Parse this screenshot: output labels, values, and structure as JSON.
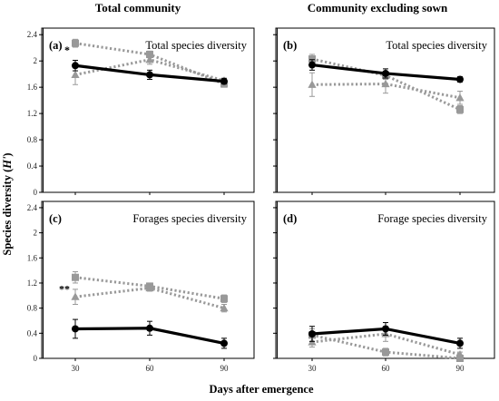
{
  "figure": {
    "col_left_title": "Total community",
    "col_right_title": "Community excluding sown",
    "ylabel_main": "Species diversity (",
    "ylabel_italic": "H'",
    "ylabel_end": ")",
    "xlabel": "Days after emergence"
  },
  "colors": {
    "solid": "#000000",
    "dotted": "#999999"
  },
  "chart_data": [
    {
      "type": "line",
      "tag": "(a)",
      "title": "Total species diversity",
      "x": [
        30,
        60,
        90
      ],
      "xticks": [
        "30",
        "60",
        "90"
      ],
      "ylim": [
        0,
        2.5
      ],
      "yticks": [
        "0",
        "0.4",
        "0.8",
        "1.2",
        "1.6",
        "2",
        "2.4"
      ],
      "annotation": "*",
      "series": [
        {
          "style": "solid-circle",
          "values": [
            1.93,
            1.79,
            1.69
          ],
          "errors": [
            0.08,
            0.07,
            0.04
          ]
        },
        {
          "style": "dotted-square",
          "values": [
            2.27,
            2.1,
            1.65
          ],
          "errors": [
            0.06,
            0.05,
            0.05
          ]
        },
        {
          "style": "dotted-triangle",
          "values": [
            1.79,
            2.02,
            1.7
          ],
          "errors": [
            0.15,
            0.07,
            0.04
          ]
        }
      ]
    },
    {
      "type": "line",
      "tag": "(b)",
      "title": "Total species diversity",
      "x": [
        30,
        60,
        90
      ],
      "xticks": [
        "30",
        "60",
        "90"
      ],
      "ylim": [
        0,
        2.5
      ],
      "yticks": [
        "0",
        "0.4",
        "0.8",
        "1.2",
        "1.6",
        "2",
        "2.4"
      ],
      "annotation": "",
      "series": [
        {
          "style": "solid-circle",
          "values": [
            1.94,
            1.81,
            1.72
          ],
          "errors": [
            0.08,
            0.07,
            0.04
          ]
        },
        {
          "style": "dotted-square",
          "values": [
            2.03,
            1.78,
            1.26
          ],
          "errors": [
            0.07,
            0.06,
            0.06
          ]
        },
        {
          "style": "dotted-triangle",
          "values": [
            1.64,
            1.65,
            1.44
          ],
          "errors": [
            0.18,
            0.14,
            0.1
          ]
        }
      ]
    },
    {
      "type": "line",
      "tag": "(c)",
      "title": "Forages species diversity",
      "x": [
        30,
        60,
        90
      ],
      "xticks": [
        "30",
        "60",
        "90"
      ],
      "ylim": [
        0,
        2.5
      ],
      "yticks": [
        "0",
        "0.4",
        "0.8",
        "1.2",
        "1.6",
        "2",
        "2.4"
      ],
      "annotation": "**",
      "series": [
        {
          "style": "solid-circle",
          "values": [
            0.47,
            0.48,
            0.24
          ],
          "errors": [
            0.15,
            0.11,
            0.08
          ]
        },
        {
          "style": "dotted-square",
          "values": [
            1.29,
            1.15,
            0.95
          ],
          "errors": [
            0.09,
            0.05,
            0.06
          ]
        },
        {
          "style": "dotted-triangle",
          "values": [
            0.98,
            1.12,
            0.8
          ],
          "errors": [
            0.12,
            0.05,
            0.06
          ]
        }
      ]
    },
    {
      "type": "line",
      "tag": "(d)",
      "title": "Forage species diversity",
      "x": [
        30,
        60,
        90
      ],
      "xticks": [
        "30",
        "60",
        "90"
      ],
      "ylim": [
        0,
        2.5
      ],
      "yticks": [
        "0",
        "0.4",
        "0.8",
        "1.2",
        "1.6",
        "2",
        "2.4"
      ],
      "annotation": "",
      "series": [
        {
          "style": "solid-circle",
          "values": [
            0.39,
            0.47,
            0.24
          ],
          "errors": [
            0.12,
            0.1,
            0.08
          ]
        },
        {
          "style": "dotted-square",
          "values": [
            0.37,
            0.1,
            0.0
          ],
          "errors": [
            0.1,
            0.06,
            0.03
          ]
        },
        {
          "style": "dotted-triangle",
          "values": [
            0.26,
            0.39,
            0.06
          ],
          "errors": [
            0.08,
            0.12,
            0.04
          ]
        }
      ]
    }
  ]
}
